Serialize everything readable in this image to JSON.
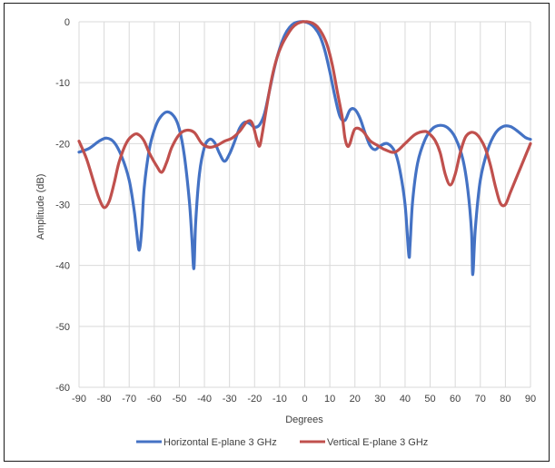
{
  "chart_data": {
    "type": "line",
    "title": "",
    "xlabel": "Degrees",
    "ylabel": "Amplitude (dB)",
    "xlim": [
      -90,
      90
    ],
    "ylim": [
      -60,
      0
    ],
    "xticks": [
      -90,
      -80,
      -70,
      -60,
      -50,
      -40,
      -30,
      -20,
      -10,
      0,
      10,
      20,
      30,
      40,
      50,
      60,
      70,
      80,
      90
    ],
    "yticks": [
      0,
      -10,
      -20,
      -30,
      -40,
      -50,
      -60
    ],
    "grid": true,
    "legend_position": "bottom",
    "series": [
      {
        "name": "Horizontal E-plane 3 GHz",
        "color": "#4472c4",
        "x": [
          -90,
          -86,
          -82,
          -79,
          -76,
          -73,
          -70,
          -68,
          -67,
          -66,
          -65,
          -64,
          -62,
          -60,
          -58,
          -55,
          -52,
          -50,
          -48,
          -46,
          -45,
          -44.2,
          -43.5,
          -42,
          -40,
          -38,
          -36,
          -34,
          -32,
          -30,
          -28,
          -26,
          -24,
          -22,
          -20,
          -18,
          -16,
          -14,
          -12,
          -10,
          -8,
          -6,
          -4,
          -2,
          0,
          2,
          4,
          6,
          8,
          10,
          12,
          14,
          16,
          18,
          20,
          22,
          24,
          26,
          28,
          30,
          33,
          36,
          38,
          40,
          41.5,
          42,
          43,
          45,
          48,
          51,
          54,
          57,
          60,
          63,
          65,
          66.5,
          67,
          68,
          70,
          73,
          76,
          79,
          82,
          85,
          88,
          90
        ],
        "y": [
          -21.4,
          -20.8,
          -19.6,
          -19.1,
          -19.8,
          -22.1,
          -26.0,
          -31.0,
          -34.6,
          -37.5,
          -34.0,
          -27.2,
          -21.0,
          -17.8,
          -15.9,
          -14.8,
          -15.6,
          -17.6,
          -22.0,
          -29.5,
          -35.5,
          -40.5,
          -33.0,
          -25.0,
          -20.6,
          -19.3,
          -19.8,
          -21.6,
          -22.9,
          -21.7,
          -19.7,
          -17.5,
          -16.5,
          -16.7,
          -17.3,
          -16.9,
          -15.0,
          -11.2,
          -7.4,
          -4.4,
          -2.2,
          -0.9,
          -0.2,
          0,
          0,
          -0.3,
          -1.0,
          -2.3,
          -4.7,
          -8.2,
          -12.2,
          -15.5,
          -16.2,
          -14.5,
          -14.4,
          -15.8,
          -18.2,
          -20.3,
          -21.0,
          -20.4,
          -20.0,
          -21.4,
          -24.5,
          -30.0,
          -38.3,
          -36.5,
          -29.5,
          -23.2,
          -19.3,
          -17.5,
          -17.0,
          -17.4,
          -19.0,
          -22.5,
          -27.5,
          -34.5,
          -41.5,
          -34.0,
          -26.0,
          -21.0,
          -18.3,
          -17.2,
          -17.2,
          -18.0,
          -19.0,
          -19.3
        ]
      },
      {
        "name": "Vertical E-plane 3 GHz",
        "color": "#c0504d",
        "x": [
          -90,
          -87,
          -84,
          -82,
          -80,
          -78,
          -76,
          -74,
          -71,
          -68,
          -66,
          -64,
          -62,
          -59,
          -57,
          -55,
          -53,
          -50,
          -47,
          -44,
          -41,
          -38,
          -35,
          -32,
          -29,
          -26,
          -23,
          -21,
          -19,
          -18,
          -17,
          -15,
          -13,
          -11,
          -9,
          -7,
          -5,
          -3,
          -1,
          0,
          1,
          3,
          5,
          7,
          9,
          11,
          13,
          15,
          16,
          17,
          18,
          20,
          23,
          26,
          29,
          32,
          36,
          40,
          44,
          48,
          50,
          52,
          54,
          56,
          58,
          60,
          62,
          64,
          66,
          68,
          70,
          72,
          74,
          76,
          78,
          80,
          82,
          85,
          88,
          90
        ],
        "y": [
          -19.6,
          -22.5,
          -26.5,
          -29.0,
          -30.5,
          -29.5,
          -26.5,
          -23.0,
          -19.8,
          -18.5,
          -18.6,
          -19.6,
          -21.5,
          -23.7,
          -24.7,
          -23.0,
          -20.6,
          -18.5,
          -17.8,
          -18.2,
          -20.0,
          -20.6,
          -20.3,
          -19.6,
          -19.1,
          -18.0,
          -16.4,
          -16.6,
          -19.5,
          -20.4,
          -18.5,
          -13.5,
          -9.0,
          -5.8,
          -3.7,
          -2.2,
          -1.0,
          -0.3,
          0,
          0,
          0,
          -0.2,
          -0.8,
          -2.0,
          -3.9,
          -7.1,
          -11.5,
          -15.8,
          -19.0,
          -20.4,
          -20.0,
          -17.6,
          -17.9,
          -19.5,
          -20.3,
          -21.0,
          -21.4,
          -20.0,
          -18.5,
          -18.0,
          -18.5,
          -19.5,
          -21.5,
          -25.0,
          -26.8,
          -25.0,
          -21.5,
          -19.0,
          -18.2,
          -18.3,
          -19.2,
          -20.8,
          -23.5,
          -27.0,
          -29.8,
          -30.0,
          -28.0,
          -25.0,
          -22.0,
          -20.0
        ]
      }
    ]
  }
}
